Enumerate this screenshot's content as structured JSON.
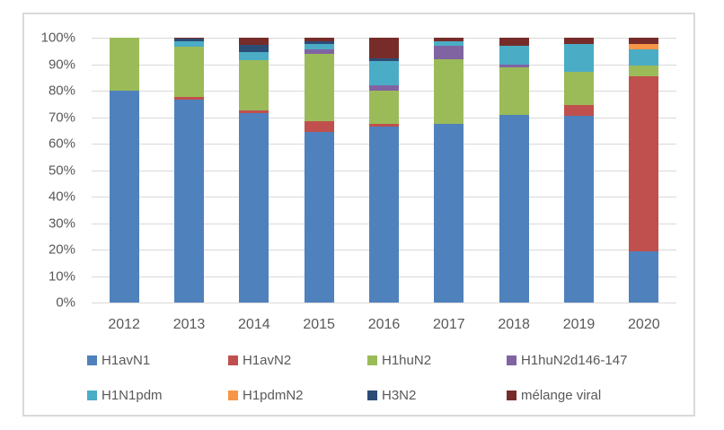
{
  "figure": {
    "background_color": "#ffffff",
    "border_color": "#d9d9d9",
    "text_color": "#595959",
    "gridline_color": "#d9d9d9"
  },
  "chart_data": {
    "type": "bar",
    "stacked": true,
    "percent_stacked": true,
    "title": "",
    "xlabel": "",
    "ylabel": "",
    "ylim": [
      0,
      100
    ],
    "grid": true,
    "legend_position": "bottom",
    "y_tick_values": [
      100,
      90,
      80,
      70,
      60,
      50,
      40,
      30,
      20,
      10,
      0
    ],
    "y_tick_suffix": "%",
    "categories": [
      "2012",
      "2013",
      "2014",
      "2015",
      "2016",
      "2017",
      "2018",
      "2019",
      "2020"
    ],
    "series": [
      {
        "name": "H1avN1",
        "color": "#4f81bd",
        "values": [
          80,
          76.5,
          71.5,
          64.5,
          66.5,
          67.5,
          71,
          70.5,
          19.5
        ]
      },
      {
        "name": "H1avN2",
        "color": "#c0504d",
        "values": [
          0,
          1,
          1,
          4,
          1,
          0,
          0,
          4,
          66
        ]
      },
      {
        "name": "H1huN2",
        "color": "#9bbb59",
        "values": [
          20,
          19,
          19,
          25.5,
          12.5,
          24.5,
          18,
          12.5,
          4
        ]
      },
      {
        "name": "H1huN2d146-147",
        "color": "#8064a2",
        "values": [
          0,
          0,
          0,
          1.5,
          2,
          5,
          1,
          0,
          0
        ]
      },
      {
        "name": "H1N1pdm",
        "color": "#4bacc6",
        "values": [
          0,
          2,
          3,
          2,
          9,
          1.5,
          7,
          10.5,
          6
        ]
      },
      {
        "name": "H1pdmN2",
        "color": "#f79646",
        "values": [
          0,
          0,
          0,
          0,
          0,
          0,
          0,
          0,
          2
        ]
      },
      {
        "name": "H3N2",
        "color": "#2c4d75",
        "values": [
          0,
          1,
          3,
          1,
          1,
          0,
          0,
          0,
          0
        ]
      },
      {
        "name": "mélange viral",
        "color": "#772c2a",
        "values": [
          0,
          0.5,
          2.5,
          1.5,
          8,
          1.5,
          3,
          2.5,
          2.5
        ]
      }
    ],
    "legend_rows": [
      [
        "H1avN1",
        "H1avN2",
        "H1huN2",
        "H1huN2d146-147"
      ],
      [
        "H1N1pdm",
        "H1pdmN2",
        "H3N2",
        "mélange viral"
      ]
    ]
  }
}
